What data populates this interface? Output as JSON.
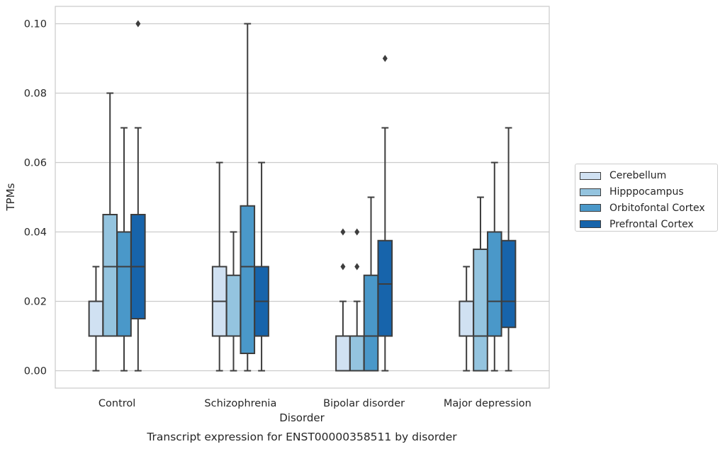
{
  "chart_data": {
    "type": "box",
    "title": "Transcript expression for ENST00000358511 by disorder",
    "xlabel": "Disorder",
    "ylabel": "TPMs",
    "ylim": [
      -0.005,
      0.105
    ],
    "yticks": [
      0.0,
      0.02,
      0.04,
      0.06,
      0.08,
      0.1
    ],
    "ytick_labels": [
      "0.00",
      "0.02",
      "0.04",
      "0.06",
      "0.08",
      "0.10"
    ],
    "categories": [
      "Control",
      "Schizophrenia",
      "Bipolar disorder",
      "Major depression"
    ],
    "grid": "horizontal",
    "legend_placement": "right, outside plot",
    "series": [
      {
        "name": "Cerebellum",
        "color": "#d0e1f2",
        "boxes": [
          {
            "whislo": 0.0,
            "q1": 0.01,
            "med": 0.01,
            "q3": 0.02,
            "whishi": 0.03,
            "fliers": []
          },
          {
            "whislo": 0.0,
            "q1": 0.01,
            "med": 0.02,
            "q3": 0.03,
            "whishi": 0.06,
            "fliers": []
          },
          {
            "whislo": 0.0,
            "q1": 0.0,
            "med": 0.0,
            "q3": 0.01,
            "whishi": 0.02,
            "fliers": [
              0.03,
              0.04
            ]
          },
          {
            "whislo": 0.0,
            "q1": 0.01,
            "med": 0.01,
            "q3": 0.02,
            "whishi": 0.03,
            "fliers": []
          }
        ]
      },
      {
        "name": "Hipppocampus",
        "color": "#94c4df",
        "boxes": [
          {
            "whislo": 0.01,
            "q1": 0.01,
            "med": 0.03,
            "q3": 0.045,
            "whishi": 0.08,
            "fliers": []
          },
          {
            "whislo": 0.0,
            "q1": 0.01,
            "med": 0.01,
            "q3": 0.0275,
            "whishi": 0.04,
            "fliers": []
          },
          {
            "whislo": 0.0,
            "q1": 0.0,
            "med": 0.0,
            "q3": 0.01,
            "whishi": 0.02,
            "fliers": [
              0.03,
              0.04
            ]
          },
          {
            "whislo": 0.0,
            "q1": 0.0,
            "med": 0.01,
            "q3": 0.035,
            "whishi": 0.05,
            "fliers": []
          }
        ]
      },
      {
        "name": "Orbitofontal Cortex",
        "color": "#4a98c9",
        "boxes": [
          {
            "whislo": 0.0,
            "q1": 0.01,
            "med": 0.03,
            "q3": 0.04,
            "whishi": 0.07,
            "fliers": []
          },
          {
            "whislo": 0.0,
            "q1": 0.005,
            "med": 0.03,
            "q3": 0.0475,
            "whishi": 0.1,
            "fliers": []
          },
          {
            "whislo": 0.0,
            "q1": 0.0,
            "med": 0.01,
            "q3": 0.0275,
            "whishi": 0.05,
            "fliers": []
          },
          {
            "whislo": 0.0,
            "q1": 0.01,
            "med": 0.02,
            "q3": 0.04,
            "whishi": 0.06,
            "fliers": []
          }
        ]
      },
      {
        "name": "Prefrontal Cortex",
        "color": "#1764ab",
        "boxes": [
          {
            "whislo": 0.0,
            "q1": 0.015,
            "med": 0.03,
            "q3": 0.045,
            "whishi": 0.07,
            "fliers": [
              0.1
            ]
          },
          {
            "whislo": 0.0,
            "q1": 0.01,
            "med": 0.02,
            "q3": 0.03,
            "whishi": 0.06,
            "fliers": []
          },
          {
            "whislo": 0.0,
            "q1": 0.01,
            "med": 0.025,
            "q3": 0.0375,
            "whishi": 0.07,
            "fliers": [
              0.09
            ]
          },
          {
            "whislo": 0.0,
            "q1": 0.0125,
            "med": 0.02,
            "q3": 0.0375,
            "whishi": 0.07,
            "fliers": []
          }
        ]
      }
    ]
  }
}
